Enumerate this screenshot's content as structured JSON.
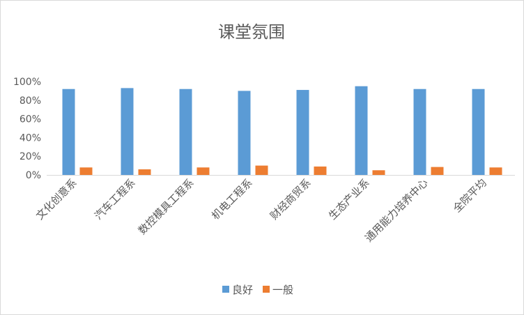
{
  "chart_data": {
    "type": "bar",
    "title": "课堂氛围",
    "categories": [
      "文化创意系",
      "汽车工程系",
      "数控模具工程系",
      "机电工程系",
      "财经商贸系",
      "生态产业系",
      "通用能力培养中心",
      "全院平均"
    ],
    "series": [
      {
        "name": "良好",
        "color": "#5b9bd5",
        "values": [
          0.92,
          0.93,
          0.92,
          0.9,
          0.91,
          0.95,
          0.92,
          0.92
        ]
      },
      {
        "name": "一般",
        "color": "#ed7d31",
        "values": [
          0.08,
          0.06,
          0.08,
          0.1,
          0.09,
          0.05,
          0.085,
          0.08
        ]
      }
    ],
    "ylim": [
      0,
      1
    ],
    "yticks": [
      "0%",
      "20%",
      "40%",
      "60%",
      "80%",
      "100%"
    ],
    "grid": false,
    "legend_position": "bottom"
  }
}
